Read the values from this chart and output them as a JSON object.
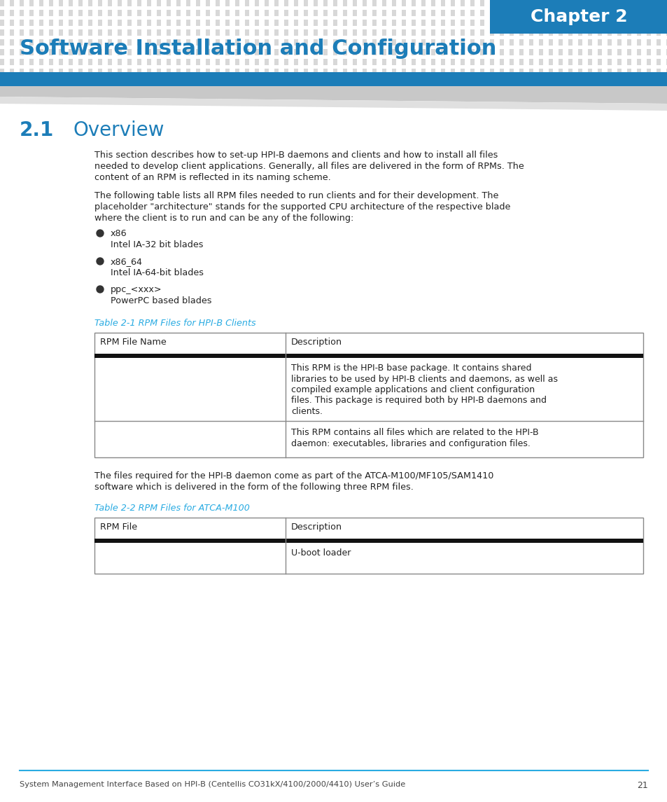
{
  "chapter_label": "Chapter 2",
  "chapter_bg": "#1c7db8",
  "title": "Software Installation and Configuration",
  "title_color": "#1c7db8",
  "header_bar_color": "#1c7db8",
  "dot_color": "#d8d8d8",
  "section_num": "2.1",
  "section_title": "Overview",
  "section_color": "#1c7db8",
  "body_text1_lines": [
    "This section describes how to set-up HPI-B daemons and clients and how to install all files",
    "needed to develop client applications. Generally, all files are delivered in the form of RPMs. The",
    "content of an RPM is reflected in its naming scheme."
  ],
  "body_text2_lines": [
    "The following table lists all RPM files needed to run clients and for their development. The",
    "placeholder \"architecture\" stands for the supported CPU architecture of the respective blade",
    "where the client is to run and can be any of the following:"
  ],
  "bullets": [
    [
      "x86",
      "Intel IA-32 bit blades"
    ],
    [
      "x86_64",
      "Intel IA-64-bit blades"
    ],
    [
      "ppc_<xxx>",
      "PowerPC based blades"
    ]
  ],
  "table1_caption": "Table 2-1 RPM Files for HPI-B Clients",
  "table1_caption_color": "#29abe2",
  "table1_headers": [
    "RPM File Name",
    "Description"
  ],
  "table1_row1_desc": [
    "This RPM is the HPI-B base package. It contains shared",
    "libraries to be used by HPI-B clients and daemons, as well as",
    "compiled example applications and client configuration",
    "files. This package is required both by HPI-B daemons and",
    "clients."
  ],
  "table1_row2_desc": [
    "This RPM contains all files which are related to the HPI-B",
    "daemon: executables, libraries and configuration files."
  ],
  "body_text3_lines": [
    "The files required for the HPI-B daemon come as part of the ATCA-M100/MF105/SAM1410",
    "software which is delivered in the form of the following three RPM files."
  ],
  "table2_caption": "Table 2-2 RPM Files for ATCA-M100",
  "table2_caption_color": "#29abe2",
  "table2_headers": [
    "RPM File",
    "Description"
  ],
  "table2_row1_desc": "U-boot loader",
  "footer_text": "System Management Interface Based on HPI-B (Centellis CO31kX/4100/2000/4410) User’s Guide",
  "footer_page": "21",
  "footer_line_color": "#29abe2",
  "table_border_color": "#888888",
  "table_sep_color": "#111111",
  "bg_color": "#ffffff",
  "text_color": "#222222"
}
